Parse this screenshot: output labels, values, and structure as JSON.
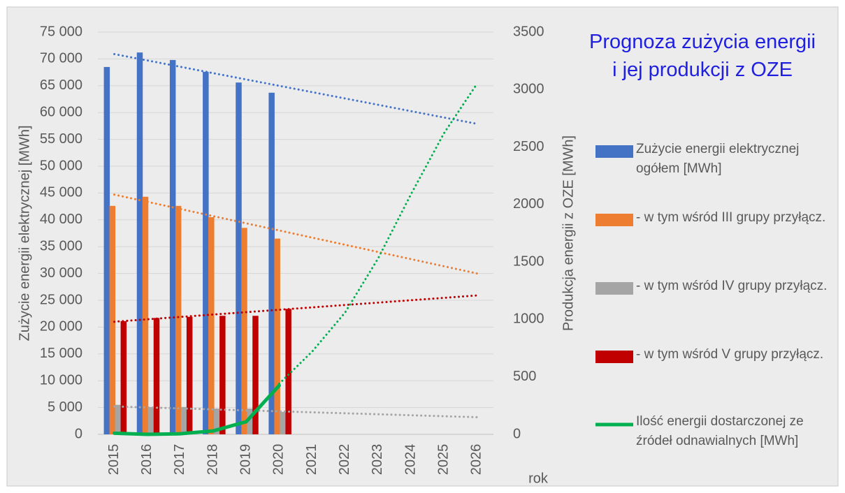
{
  "chart_data": {
    "type": "bar",
    "title": "Prognoza zużycia energii\ni jej produkcji z OZE",
    "y_label": "Zużycie energii elektrycznej [MWh]",
    "y2_label": "Produkcja energii z OZE [MWh]",
    "x_label": "rok",
    "categories": [
      "2015",
      "2016",
      "2017",
      "2018",
      "2019",
      "2020",
      "2021",
      "2022",
      "2023",
      "2024",
      "2025",
      "2026"
    ],
    "series": [
      {
        "name": "Zużycie energii elektrycznej ogółem [MWh]",
        "type": "bar",
        "color": "#4472c4",
        "values": [
          68500,
          71200,
          69800,
          67600,
          65600,
          63700,
          null,
          null,
          null,
          null,
          null,
          null
        ]
      },
      {
        "name": "- w tym wśród III grupy przyłącz.",
        "type": "bar",
        "color": "#ed7d31",
        "values": [
          42600,
          44300,
          42600,
          40500,
          38500,
          36500,
          null,
          null,
          null,
          null,
          null,
          null
        ]
      },
      {
        "name": "- w tym wśród IV grupy przyłącz.",
        "type": "bar",
        "color": "#a5a5a5",
        "values": [
          5500,
          5100,
          5100,
          4800,
          4800,
          4200,
          null,
          null,
          null,
          null,
          null,
          null
        ]
      },
      {
        "name": "- w tym wśród V grupy przyłącz.",
        "type": "bar",
        "color": "#c00000",
        "values": [
          21100,
          21700,
          21900,
          22100,
          22100,
          23400,
          null,
          null,
          null,
          null,
          null,
          null
        ]
      },
      {
        "name": "Ilość energii dostarczonej ze źródeł odnawialnych [MWh]",
        "type": "line",
        "axis": "y2",
        "color": "#00b050",
        "values": [
          10,
          0,
          5,
          30,
          110,
          425,
          null,
          null,
          null,
          null,
          null,
          null
        ]
      }
    ],
    "trendlines": [
      {
        "color": "#4472c4",
        "values": [
          70900,
          69720,
          68540,
          67350,
          66170,
          64990,
          63810,
          62630,
          61450,
          60260,
          59080,
          57900
        ]
      },
      {
        "color": "#ed7d31",
        "values": [
          44700,
          43360,
          42030,
          40690,
          39350,
          38020,
          36680,
          35350,
          34010,
          32670,
          31340,
          30000
        ]
      },
      {
        "color": "#a5a5a5",
        "values": [
          5200,
          5020,
          4840,
          4650,
          4470,
          4290,
          4110,
          3930,
          3750,
          3560,
          3380,
          3200
        ]
      },
      {
        "color": "#c00000",
        "values": [
          21000,
          21450,
          21890,
          22340,
          22780,
          23230,
          23670,
          24120,
          24560,
          25010,
          25450,
          25900
        ]
      },
      {
        "color": "#00b050",
        "axis": "y2",
        "values": [
          null,
          null,
          null,
          null,
          null,
          440,
          720,
          1060,
          1530,
          2090,
          2620,
          3050
        ]
      }
    ],
    "ylim": [
      0,
      75000
    ],
    "yticks": [
      0,
      {
        "value": 5000,
        "label": "5 000"
      },
      {
        "value": 10000,
        "label": "10 000"
      },
      {
        "value": 15000,
        "label": "15 000"
      },
      {
        "value": 20000,
        "label": "20 000"
      },
      {
        "value": 25000,
        "label": "25 000"
      },
      {
        "value": 30000,
        "label": "30 000"
      },
      {
        "value": 35000,
        "label": "35 000"
      },
      {
        "value": 40000,
        "label": "40 000"
      },
      {
        "value": 45000,
        "label": "45 000"
      },
      {
        "value": 50000,
        "label": "50 000"
      },
      {
        "value": 55000,
        "label": "55 000"
      },
      {
        "value": 60000,
        "label": "60 000"
      },
      {
        "value": 65000,
        "label": "65 000"
      },
      {
        "value": 70000,
        "label": "70 000"
      },
      {
        "value": 75000,
        "label": "75 000"
      }
    ],
    "y2lim": [
      0,
      3500
    ],
    "y2ticks": [
      0,
      500,
      1000,
      1500,
      2000,
      2500,
      3000,
      3500
    ],
    "grid": true
  }
}
